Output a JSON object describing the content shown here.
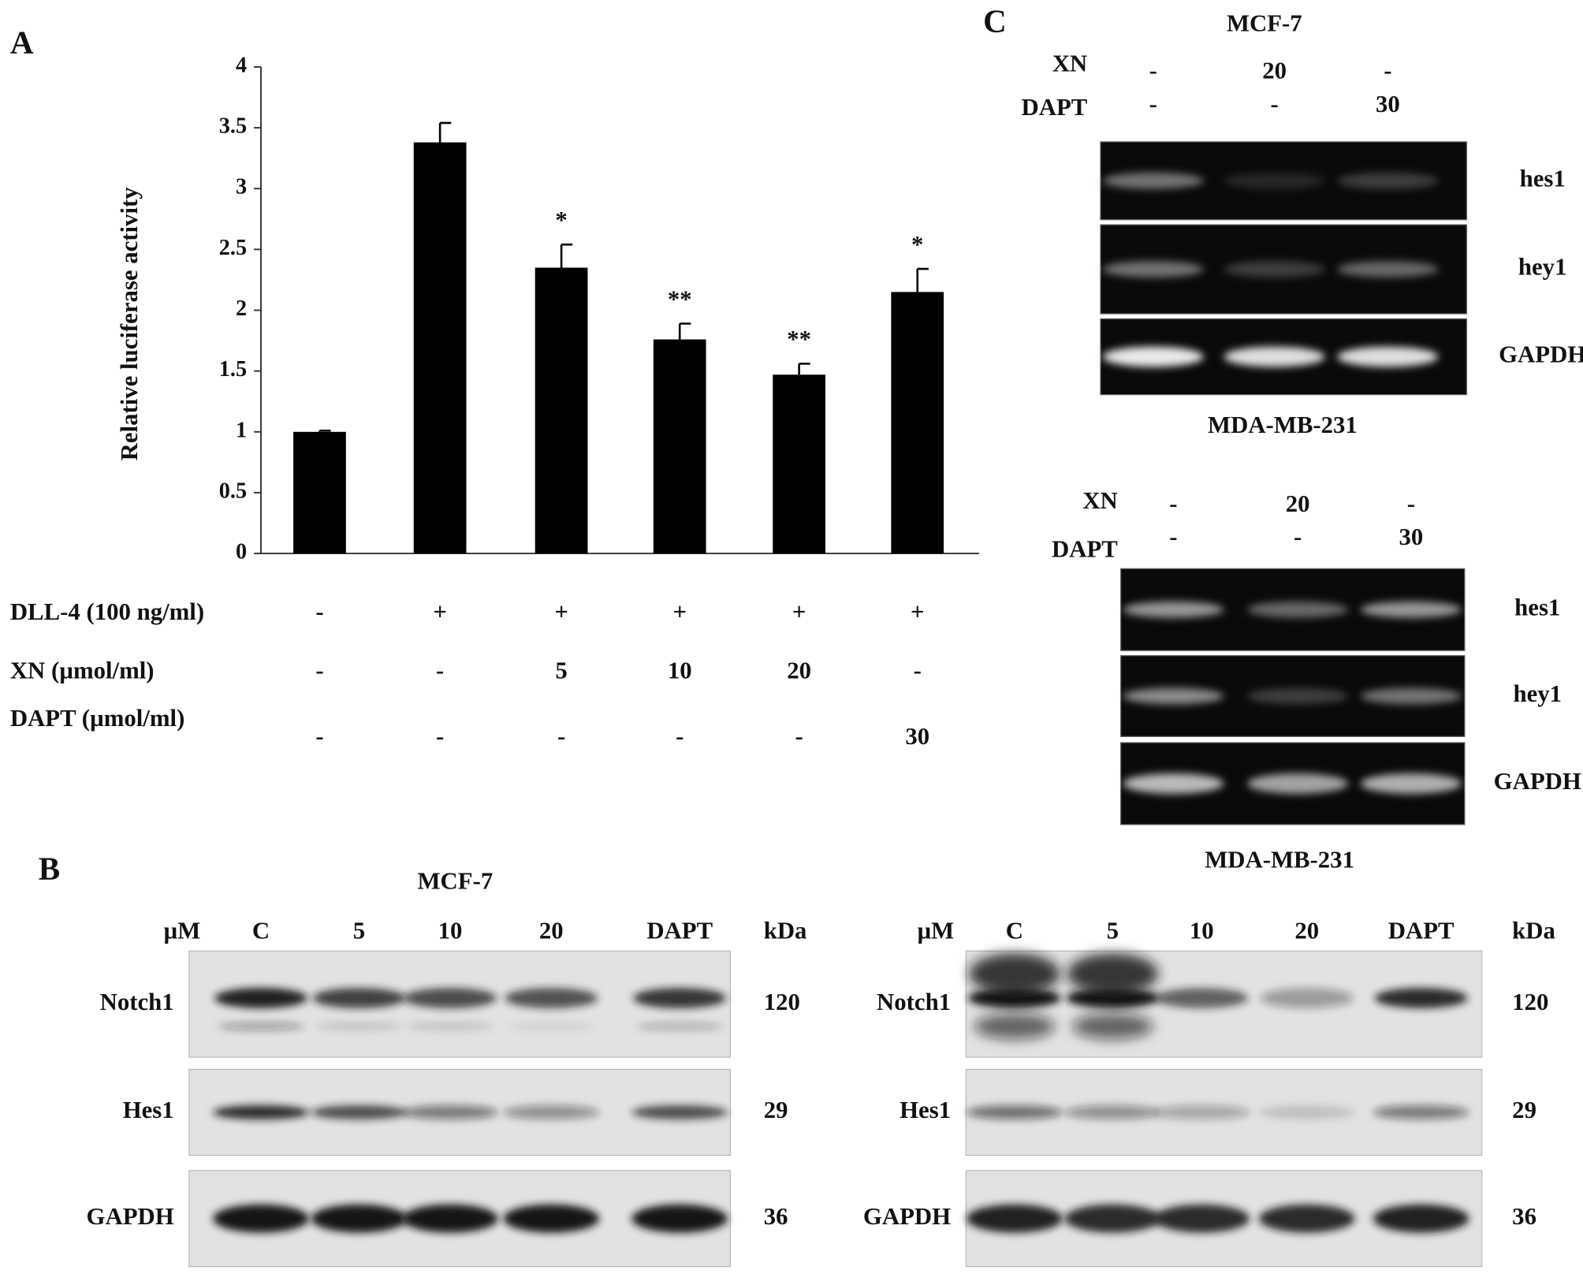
{
  "chart_data": {
    "type": "bar",
    "panel": "A",
    "ylabel": "Relative luciferase activity",
    "categories": [
      null,
      null,
      null,
      null,
      null,
      null
    ],
    "values": [
      1.0,
      3.38,
      2.35,
      1.76,
      1.47,
      2.15
    ],
    "errors": [
      0.01,
      0.16,
      0.19,
      0.13,
      0.09,
      0.19
    ],
    "significance": [
      null,
      null,
      "*",
      "**",
      "**",
      "*"
    ],
    "color": "#000000",
    "ylim": [
      0,
      4
    ],
    "yticks": [
      0,
      0.5,
      1,
      1.5,
      2,
      2.5,
      3,
      3.5,
      4
    ],
    "grid": false,
    "treatments": [
      {
        "label": "DLL-4 (100 ng/ml)",
        "values": [
          "-",
          "+",
          "+",
          "+",
          "+",
          "+"
        ]
      },
      {
        "label": "XN (µmol/ml)",
        "values": [
          "-",
          "-",
          "5",
          "10",
          "20",
          "-"
        ]
      },
      {
        "label": "DAPT (µmol/ml)",
        "values": [
          "-",
          "-",
          "-",
          "-",
          "-",
          "30"
        ]
      }
    ]
  },
  "panel_b": {
    "label": "B",
    "blots": [
      {
        "title": "MCF-7",
        "unit": "µM",
        "lanes": [
          "C",
          "5",
          "10",
          "20",
          "DAPT"
        ],
        "size_unit": "kDa",
        "rows": [
          {
            "name": "Notch1",
            "size": "120"
          },
          {
            "name": "Hes1",
            "size": "29"
          },
          {
            "name": "GAPDH",
            "size": "36"
          }
        ]
      },
      {
        "unit": "µM",
        "lanes": [
          "C",
          "5",
          "10",
          "20",
          "DAPT"
        ],
        "size_unit": "kDa",
        "rows": [
          {
            "name": "Notch1",
            "size": "120"
          },
          {
            "name": "Hes1",
            "size": "29"
          },
          {
            "name": "GAPDH",
            "size": "36"
          }
        ]
      }
    ]
  },
  "panel_c": {
    "label": "C",
    "gels": [
      {
        "title": "MCF-7",
        "conditions": [
          {
            "label": "XN",
            "values": [
              "-",
              "20",
              "-"
            ]
          },
          {
            "label": "DAPT",
            "values": [
              "-",
              "-",
              "30"
            ]
          }
        ],
        "rows": [
          "hes1",
          "hey1",
          "GAPDH"
        ],
        "caption": "MDA-MB-231"
      },
      {
        "conditions": [
          {
            "label": "XN",
            "values": [
              "-",
              "20",
              "-"
            ]
          },
          {
            "label": "DAPT",
            "values": [
              "-",
              "-",
              "30"
            ]
          }
        ],
        "rows": [
          "hes1",
          "hey1",
          "GAPDH"
        ],
        "caption": "MDA-MB-231"
      }
    ]
  }
}
